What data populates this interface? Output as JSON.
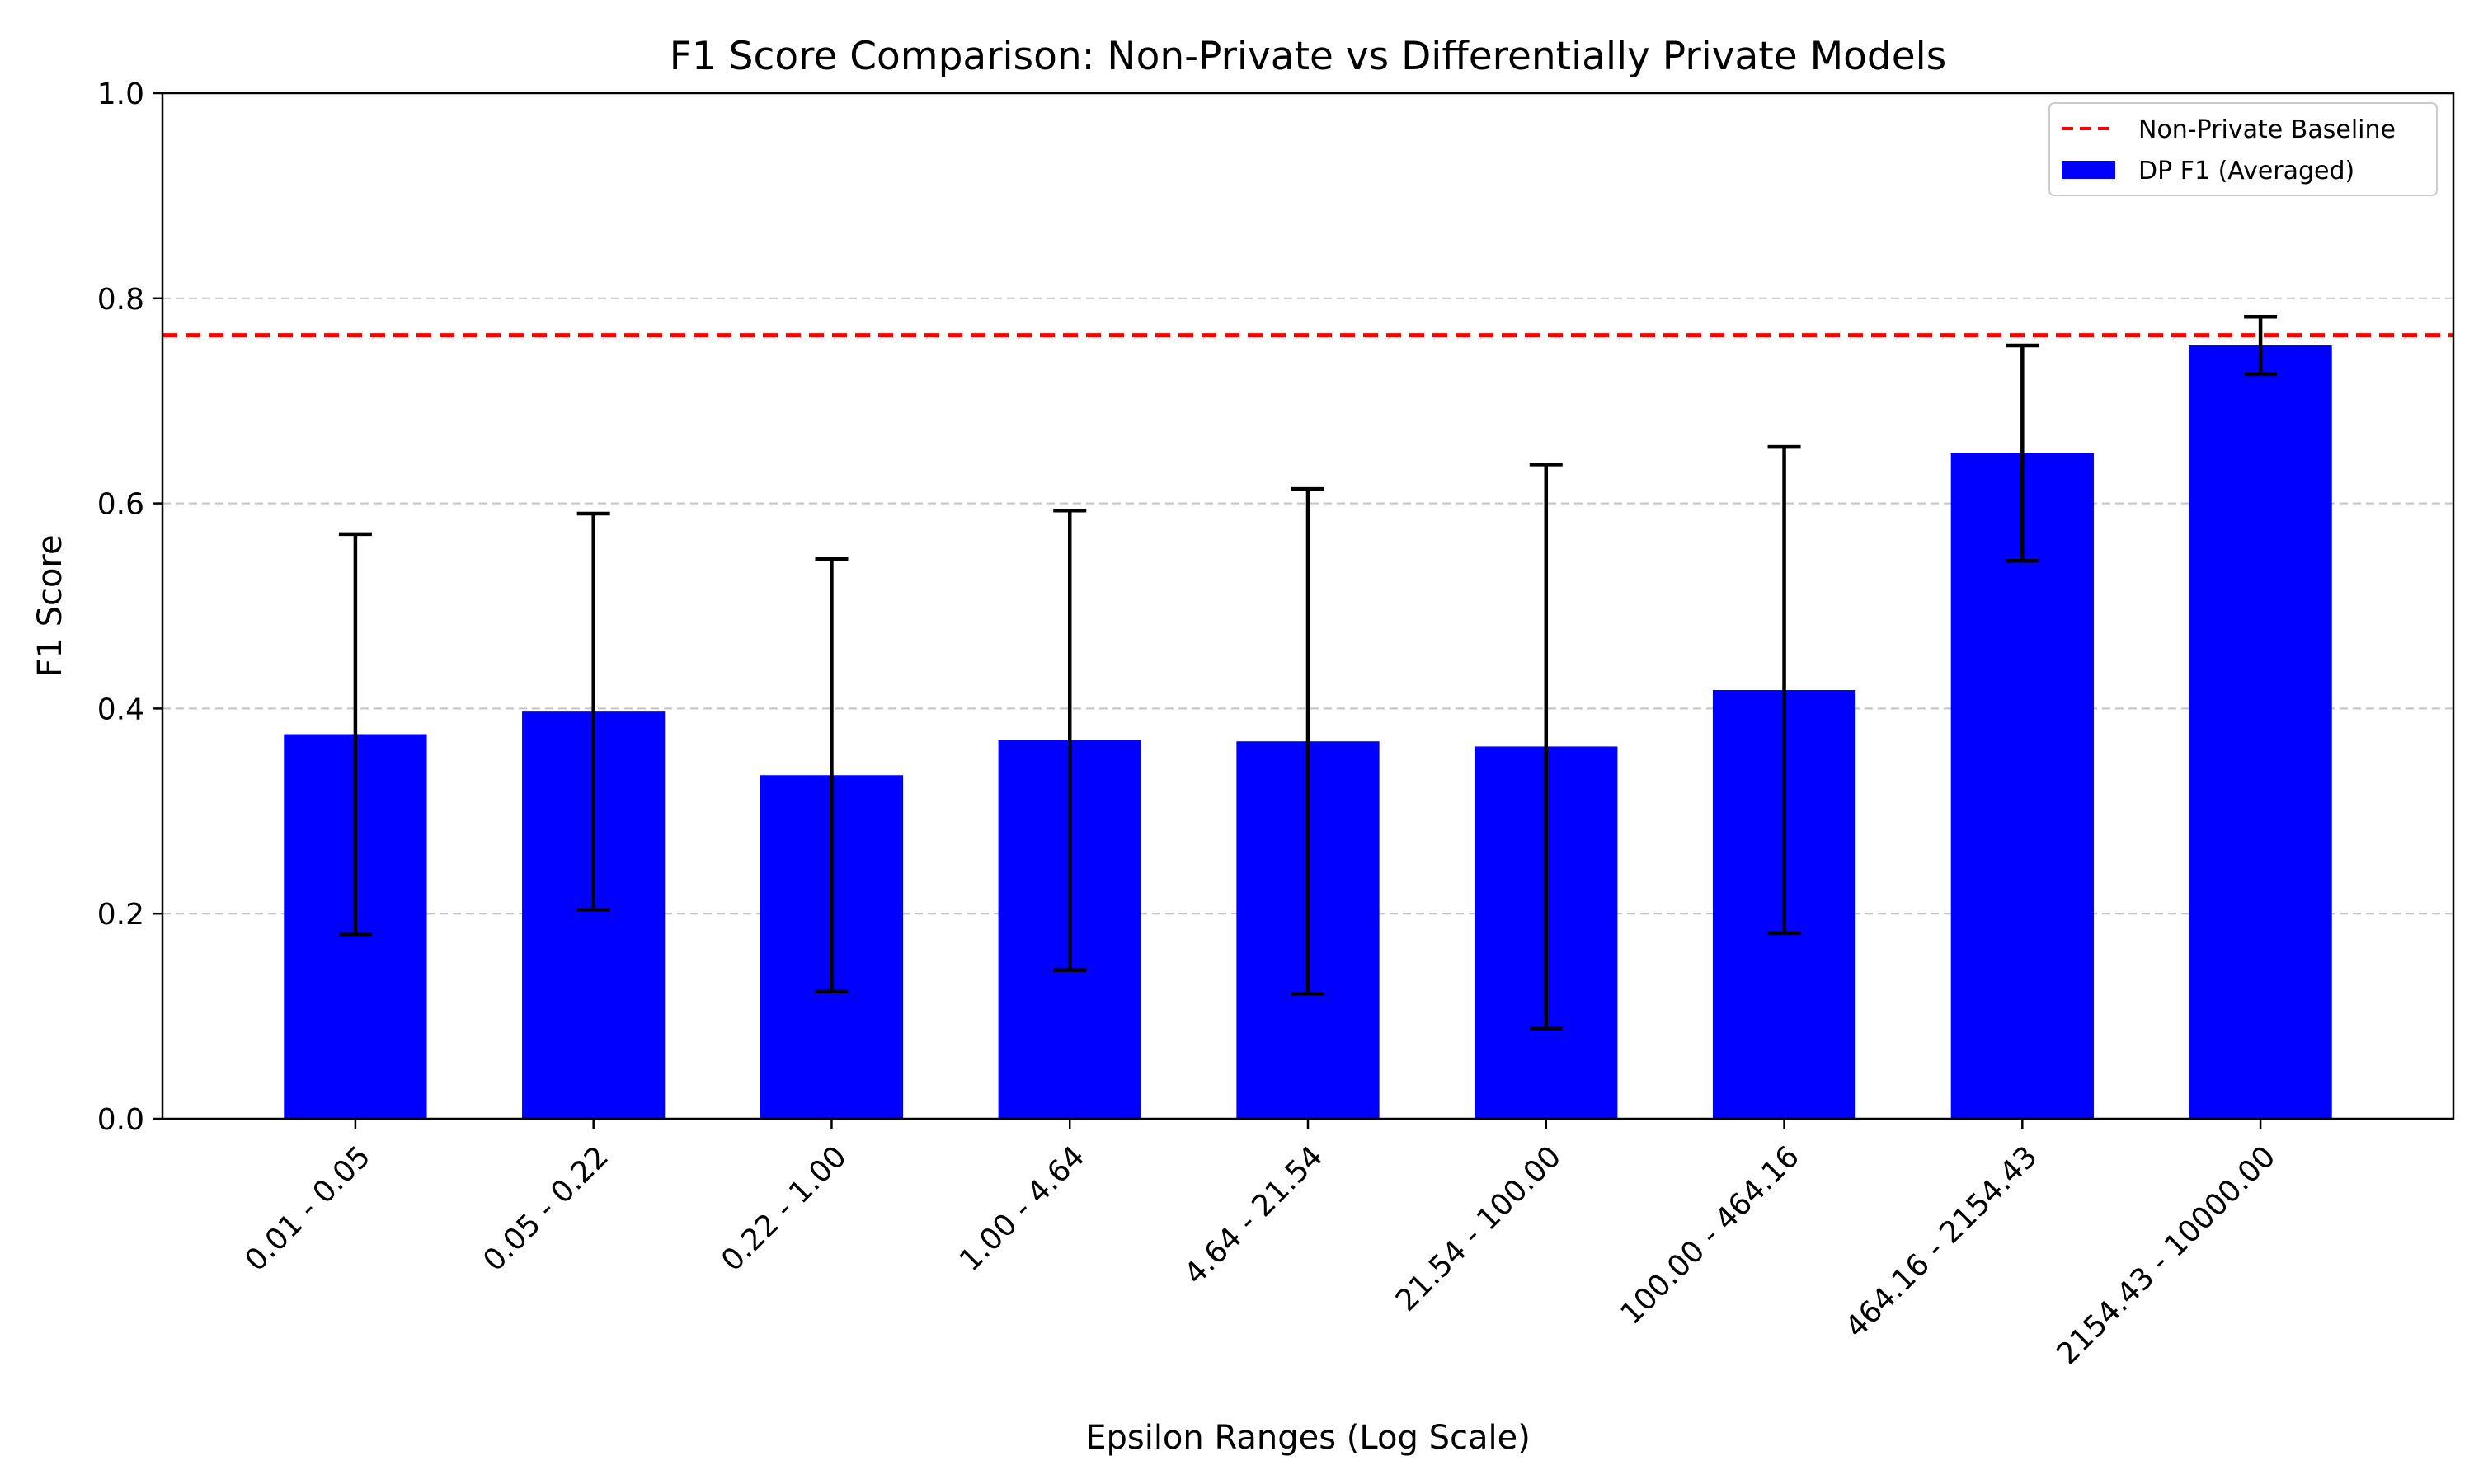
{
  "chart_data": {
    "type": "bar",
    "title": "F1 Score Comparison: Non-Private vs Differentially Private Models",
    "xlabel": "Epsilon Ranges (Log Scale)",
    "ylabel": "F1 Score",
    "ylim": [
      0,
      1.0
    ],
    "yticks": [
      0.0,
      0.2,
      0.4,
      0.6,
      0.8,
      1.0
    ],
    "ytick_labels": [
      "0.0",
      "0.2",
      "0.4",
      "0.6",
      "0.8",
      "1.0"
    ],
    "grid": "y dashed",
    "legend_position": "top-right",
    "categories": [
      "0.01 - 0.05",
      "0.05 - 0.22",
      "0.22 - 1.00",
      "1.00 - 4.64",
      "4.64 - 21.54",
      "21.54 - 100.00",
      "100.00 - 464.16",
      "464.16 - 2154.43",
      "2154.43 - 10000.00"
    ],
    "series": [
      {
        "name": "DP F1 (Averaged)",
        "color": "#0000ff",
        "values": [
          0.375,
          0.397,
          0.335,
          0.369,
          0.368,
          0.363,
          0.418,
          0.649,
          0.754
        ],
        "error": [
          0.195,
          0.193,
          0.211,
          0.224,
          0.246,
          0.275,
          0.237,
          0.105,
          0.028
        ]
      }
    ],
    "baseline": {
      "name": "Non-Private Baseline",
      "value": 0.764,
      "color": "#ff0000",
      "style": "dashed"
    }
  }
}
